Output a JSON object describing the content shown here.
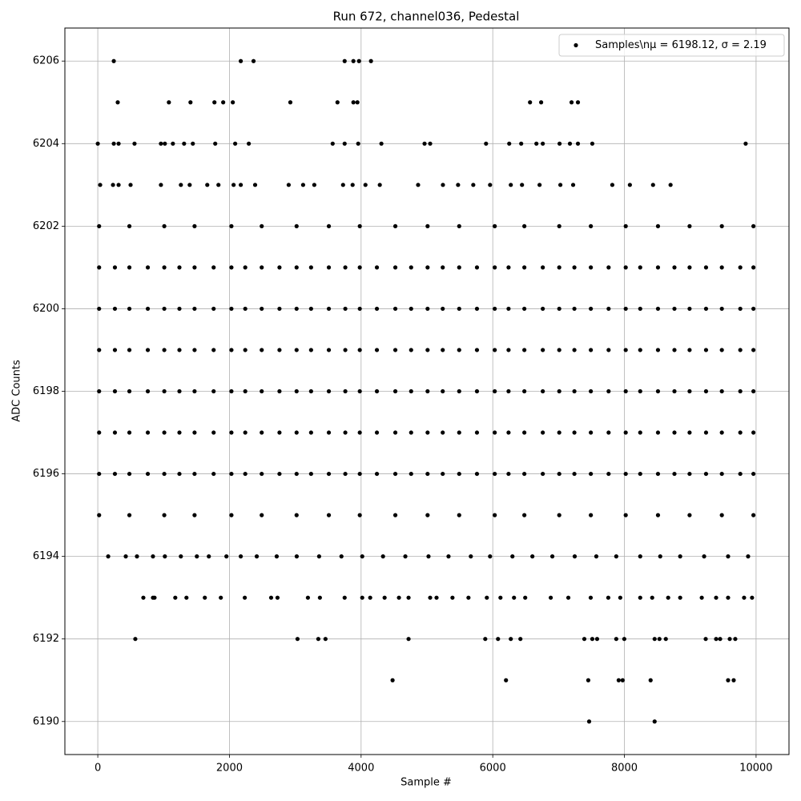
{
  "chart_data": {
    "type": "scatter",
    "title": "Run 672, channel036, Pedestal",
    "xlabel": "Sample #",
    "ylabel": "ADC Counts",
    "xlim": [
      -500,
      10500
    ],
    "ylim": [
      6189.2,
      6206.8
    ],
    "xticks": [
      0,
      2000,
      4000,
      6000,
      8000,
      10000
    ],
    "yticks": [
      6190,
      6192,
      6194,
      6196,
      6198,
      6200,
      6202,
      6204,
      6206
    ],
    "grid": true,
    "legend_loc": "upper right",
    "series": [
      {
        "name": "Samples\\nμ = 6198.12, σ = 2.19",
        "color": "#000000",
        "x": [
          243,
          2172,
          2366,
          3750,
          3883,
          3968,
          4150,
          303,
          1080,
          1408,
          1772,
          1905,
          2051,
          2925,
          3641,
          3883,
          3944,
          6566,
          6735,
          7197,
          7294,
          0,
          243,
          316,
          558,
          959,
          1019,
          1141,
          1311,
          1444,
          1784,
          2087,
          2294,
          3568,
          3750,
          3956,
          4308,
          4964,
          5049,
          5898,
          6250,
          6432,
          6663,
          6760,
          7015,
          7172,
          7294,
          7512,
          9842,
          36,
          231,
          316,
          498,
          959,
          1262,
          1396,
          1663,
          1833,
          2063,
          2172,
          2390,
          2900,
          3119,
          3289,
          3726,
          3871,
          4066,
          4284,
          4866,
          5243,
          5473,
          5704,
          5959,
          6274,
          6444,
          6711,
          7027,
          7221,
          7816,
          8083,
          8435,
          8701,
          20,
          480,
          1010,
          1470,
          2030,
          2490,
          3020,
          3510,
          3980,
          4520,
          5010,
          5490,
          6030,
          6480,
          7010,
          7490,
          8020,
          8510,
          8990,
          9480,
          9960,
          20,
          480,
          1010,
          1470,
          2030,
          2490,
          3020,
          3510,
          3980,
          4520,
          5010,
          5490,
          6030,
          6480,
          7010,
          7490,
          8020,
          8510,
          8990,
          9480,
          9960,
          260,
          760,
          1240,
          1760,
          2240,
          2760,
          3240,
          3760,
          4240,
          4760,
          5240,
          5760,
          6240,
          6760,
          7240,
          7760,
          8240,
          8760,
          9240,
          9760,
          20,
          480,
          1010,
          1470,
          2030,
          2490,
          3020,
          3510,
          3980,
          4520,
          5010,
          5490,
          6030,
          6480,
          7010,
          7490,
          8020,
          8510,
          8990,
          9480,
          9960,
          260,
          760,
          1240,
          1760,
          2240,
          2760,
          3240,
          3760,
          4240,
          4760,
          5240,
          5760,
          6240,
          6760,
          7240,
          7760,
          8240,
          8760,
          9240,
          9760,
          20,
          480,
          1010,
          1470,
          2030,
          2490,
          3020,
          3510,
          3980,
          4520,
          5010,
          5490,
          6030,
          6480,
          7010,
          7490,
          8020,
          8510,
          8990,
          9480,
          9960,
          260,
          760,
          1240,
          1760,
          2240,
          2760,
          3240,
          3760,
          4240,
          4760,
          5240,
          5760,
          6240,
          6760,
          7240,
          7760,
          8240,
          8760,
          9240,
          9760,
          20,
          480,
          1010,
          1470,
          2030,
          2490,
          3020,
          3510,
          3980,
          4520,
          5010,
          5490,
          6030,
          6480,
          7010,
          7490,
          8020,
          8510,
          8990,
          9480,
          9960,
          260,
          760,
          1240,
          1760,
          2240,
          2760,
          3240,
          3760,
          4240,
          4760,
          5240,
          5760,
          6240,
          6760,
          7240,
          7760,
          8240,
          8760,
          9240,
          9760,
          20,
          480,
          1010,
          1470,
          2030,
          2490,
          3020,
          3510,
          3980,
          4520,
          5010,
          5490,
          6030,
          6480,
          7010,
          7490,
          8020,
          8510,
          8990,
          9480,
          9960,
          260,
          760,
          1240,
          1760,
          2240,
          2760,
          3240,
          3760,
          4240,
          4760,
          5240,
          5760,
          6240,
          6760,
          7240,
          7760,
          8240,
          8760,
          9240,
          9760,
          20,
          480,
          1010,
          1470,
          2030,
          2490,
          3020,
          3510,
          3980,
          4520,
          5010,
          5490,
          6030,
          6480,
          7010,
          7490,
          8020,
          8510,
          8990,
          9480,
          9960,
          260,
          760,
          1240,
          1760,
          2240,
          2760,
          3240,
          3760,
          4240,
          4760,
          5240,
          5760,
          6240,
          6760,
          7240,
          7760,
          8240,
          8760,
          9240,
          9760,
          20,
          480,
          1010,
          1470,
          2030,
          2490,
          3020,
          3510,
          3980,
          4520,
          5010,
          5490,
          6030,
          6480,
          7010,
          7490,
          8020,
          8510,
          8990,
          9480,
          9960,
          158,
          425,
          595,
          838,
          1019,
          1262,
          1505,
          1687,
          1954,
          2172,
          2415,
          2718,
          3022,
          3362,
          3701,
          4017,
          4333,
          4672,
          5024,
          5328,
          5667,
          5959,
          6299,
          6602,
          6905,
          7245,
          7573,
          7876,
          8240,
          8544,
          8847,
          9211,
          9575,
          9879,
          692,
          838,
          862,
          1177,
          1347,
          1626,
          1869,
          2233,
          2633,
          2730,
          3192,
          3374,
          3750,
          4017,
          4138,
          4357,
          4575,
          4721,
          5049,
          5146,
          5388,
          5631,
          5910,
          6117,
          6323,
          6493,
          6881,
          7148,
          7488,
          7755,
          7937,
          8240,
          8422,
          8665,
          8847,
          9175,
          9393,
          9575,
          9818,
          9939,
          570,
          3034,
          3350,
          3459,
          4721,
          5886,
          6080,
          6274,
          6420,
          7391,
          7512,
          7585,
          7876,
          7998,
          8459,
          8532,
          8629,
          9235,
          9393,
          9454,
          9600,
          9684,
          4478,
          6201,
          7451,
          7913,
          7973,
          8398,
          9575,
          9660,
          7464,
          8459
        ],
        "y": [
          6206,
          6206,
          6206,
          6206,
          6206,
          6206,
          6206,
          6205,
          6205,
          6205,
          6205,
          6205,
          6205,
          6205,
          6205,
          6205,
          6205,
          6205,
          6205,
          6205,
          6205,
          6204,
          6204,
          6204,
          6204,
          6204,
          6204,
          6204,
          6204,
          6204,
          6204,
          6204,
          6204,
          6204,
          6204,
          6204,
          6204,
          6204,
          6204,
          6204,
          6204,
          6204,
          6204,
          6204,
          6204,
          6204,
          6204,
          6204,
          6204,
          6203,
          6203,
          6203,
          6203,
          6203,
          6203,
          6203,
          6203,
          6203,
          6203,
          6203,
          6203,
          6203,
          6203,
          6203,
          6203,
          6203,
          6203,
          6203,
          6203,
          6203,
          6203,
          6203,
          6203,
          6203,
          6203,
          6203,
          6203,
          6203,
          6203,
          6203,
          6203,
          6203,
          6202,
          6202,
          6202,
          6202,
          6202,
          6202,
          6202,
          6202,
          6202,
          6202,
          6202,
          6202,
          6202,
          6202,
          6202,
          6202,
          6202,
          6202,
          6202,
          6202,
          6202,
          6201,
          6201,
          6201,
          6201,
          6201,
          6201,
          6201,
          6201,
          6201,
          6201,
          6201,
          6201,
          6201,
          6201,
          6201,
          6201,
          6201,
          6201,
          6201,
          6201,
          6201,
          6201,
          6201,
          6201,
          6201,
          6201,
          6201,
          6201,
          6201,
          6201,
          6201,
          6201,
          6201,
          6201,
          6201,
          6201,
          6201,
          6201,
          6201,
          6201,
          6201,
          6200,
          6200,
          6200,
          6200,
          6200,
          6200,
          6200,
          6200,
          6200,
          6200,
          6200,
          6200,
          6200,
          6200,
          6200,
          6200,
          6200,
          6200,
          6200,
          6200,
          6200,
          6200,
          6200,
          6200,
          6200,
          6200,
          6200,
          6200,
          6200,
          6200,
          6200,
          6200,
          6200,
          6200,
          6200,
          6200,
          6200,
          6200,
          6200,
          6200,
          6200,
          6199,
          6199,
          6199,
          6199,
          6199,
          6199,
          6199,
          6199,
          6199,
          6199,
          6199,
          6199,
          6199,
          6199,
          6199,
          6199,
          6199,
          6199,
          6199,
          6199,
          6199,
          6199,
          6199,
          6199,
          6199,
          6199,
          6199,
          6199,
          6199,
          6199,
          6199,
          6199,
          6199,
          6199,
          6199,
          6199,
          6199,
          6199,
          6199,
          6199,
          6199,
          6198,
          6198,
          6198,
          6198,
          6198,
          6198,
          6198,
          6198,
          6198,
          6198,
          6198,
          6198,
          6198,
          6198,
          6198,
          6198,
          6198,
          6198,
          6198,
          6198,
          6198,
          6198,
          6198,
          6198,
          6198,
          6198,
          6198,
          6198,
          6198,
          6198,
          6198,
          6198,
          6198,
          6198,
          6198,
          6198,
          6198,
          6198,
          6198,
          6198,
          6198,
          6197,
          6197,
          6197,
          6197,
          6197,
          6197,
          6197,
          6197,
          6197,
          6197,
          6197,
          6197,
          6197,
          6197,
          6197,
          6197,
          6197,
          6197,
          6197,
          6197,
          6197,
          6197,
          6197,
          6197,
          6197,
          6197,
          6197,
          6197,
          6197,
          6197,
          6197,
          6197,
          6197,
          6197,
          6197,
          6197,
          6197,
          6197,
          6197,
          6197,
          6197,
          6196,
          6196,
          6196,
          6196,
          6196,
          6196,
          6196,
          6196,
          6196,
          6196,
          6196,
          6196,
          6196,
          6196,
          6196,
          6196,
          6196,
          6196,
          6196,
          6196,
          6196,
          6196,
          6196,
          6196,
          6196,
          6196,
          6196,
          6196,
          6196,
          6196,
          6196,
          6196,
          6196,
          6196,
          6196,
          6196,
          6196,
          6196,
          6196,
          6196,
          6196,
          6195,
          6195,
          6195,
          6195,
          6195,
          6195,
          6195,
          6195,
          6195,
          6195,
          6195,
          6195,
          6195,
          6195,
          6195,
          6195,
          6195,
          6195,
          6195,
          6195,
          6195,
          6194,
          6194,
          6194,
          6194,
          6194,
          6194,
          6194,
          6194,
          6194,
          6194,
          6194,
          6194,
          6194,
          6194,
          6194,
          6194,
          6194,
          6194,
          6194,
          6194,
          6194,
          6194,
          6194,
          6194,
          6194,
          6194,
          6194,
          6194,
          6194,
          6194,
          6194,
          6194,
          6194,
          6194,
          6193,
          6193,
          6193,
          6193,
          6193,
          6193,
          6193,
          6193,
          6193,
          6193,
          6193,
          6193,
          6193,
          6193,
          6193,
          6193,
          6193,
          6193,
          6193,
          6193,
          6193,
          6193,
          6193,
          6193,
          6193,
          6193,
          6193,
          6193,
          6193,
          6193,
          6193,
          6193,
          6193,
          6193,
          6193,
          6193,
          6193,
          6193,
          6193,
          6193,
          6192,
          6192,
          6192,
          6192,
          6192,
          6192,
          6192,
          6192,
          6192,
          6192,
          6192,
          6192,
          6192,
          6192,
          6192,
          6192,
          6192,
          6192,
          6192,
          6192,
          6192,
          6192,
          6191,
          6191,
          6191,
          6191,
          6191,
          6191,
          6191,
          6191,
          6190,
          6190
        ]
      }
    ]
  }
}
